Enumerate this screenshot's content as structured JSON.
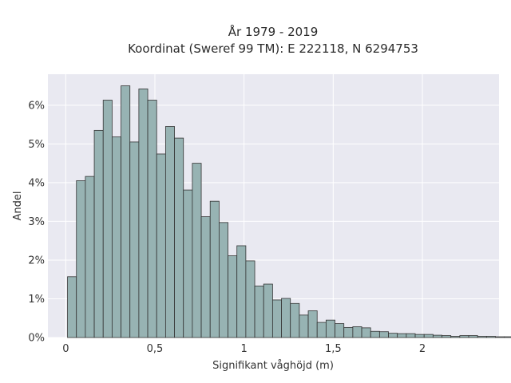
{
  "chart_data": {
    "type": "bar",
    "title": "År 1979 - 2019",
    "subtitle": "Koordinat (Sweref 99 TM): E 222118, N 6294753",
    "xlabel": "Signifikant våghöjd (m)",
    "ylabel": "Andel",
    "xlim": [
      -0.1,
      2.43
    ],
    "ylim": [
      0,
      6.8
    ],
    "x_ticks": [
      {
        "value": 0,
        "label": "0"
      },
      {
        "value": 0.5,
        "label": "0,5"
      },
      {
        "value": 1,
        "label": "1"
      },
      {
        "value": 1.5,
        "label": "1,5"
      },
      {
        "value": 2,
        "label": "2"
      }
    ],
    "y_ticks": [
      {
        "value": 0,
        "label": "0%"
      },
      {
        "value": 1,
        "label": "1%"
      },
      {
        "value": 2,
        "label": "2%"
      },
      {
        "value": 3,
        "label": "3%"
      },
      {
        "value": 4,
        "label": "4%"
      },
      {
        "value": 5,
        "label": "5%"
      },
      {
        "value": 6,
        "label": "6%"
      }
    ],
    "grid": true,
    "bin_start": 0.01,
    "bin_width": 0.05,
    "values": [
      1.57,
      4.05,
      4.16,
      5.35,
      6.13,
      5.18,
      6.5,
      5.05,
      6.42,
      6.13,
      4.74,
      5.45,
      5.15,
      3.81,
      4.5,
      3.12,
      3.52,
      2.97,
      2.11,
      2.37,
      1.98,
      1.33,
      1.38,
      0.97,
      1.01,
      0.88,
      0.58,
      0.69,
      0.39,
      0.45,
      0.36,
      0.26,
      0.28,
      0.25,
      0.16,
      0.15,
      0.11,
      0.1,
      0.1,
      0.08,
      0.08,
      0.06,
      0.05,
      0.03,
      0.05,
      0.05,
      0.03,
      0.03,
      0.02,
      0.02,
      0.02
    ],
    "colors": {
      "bar_fill": "#97b3b3",
      "bar_edge": "#333333",
      "plot_bg": "#e9e9f1",
      "grid": "#ffffff"
    }
  }
}
